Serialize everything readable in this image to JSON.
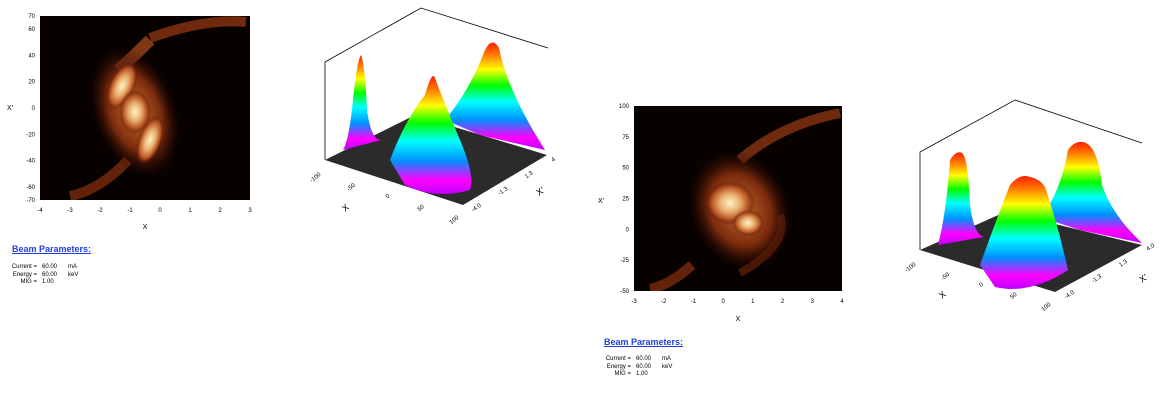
{
  "figures": [
    {
      "heatmap": {
        "xlabel": "X",
        "ylabel": "X'",
        "x_ticks": [
          "-4",
          "-3",
          "-2",
          "-1",
          "0",
          "1",
          "2",
          "3"
        ],
        "y_ticks": [
          "70",
          "60",
          "40",
          "20",
          "0",
          "-20",
          "-40",
          "-60",
          "-70"
        ]
      },
      "surface": {
        "axis_labels": [
          "X",
          "X'"
        ],
        "left_ticks": [
          "-100",
          "-50",
          "0",
          "50",
          "100"
        ],
        "right_ticks": [
          "-4.0",
          "-1.3",
          "1.3",
          "4.0"
        ]
      },
      "params": {
        "title": "Beam Parameters:",
        "rows": [
          {
            "label": "Current =",
            "value": "60.00",
            "unit": "mA"
          },
          {
            "label": "Energy =",
            "value": "60.00",
            "unit": "keV"
          },
          {
            "label": "MIG =",
            "value": "1.00",
            "unit": ""
          }
        ]
      }
    },
    {
      "heatmap": {
        "xlabel": "X",
        "ylabel": "X'",
        "x_ticks": [
          "-3",
          "-2",
          "-1",
          "0",
          "1",
          "2",
          "3",
          "4"
        ],
        "y_ticks": [
          "100",
          "75",
          "50",
          "25",
          "0",
          "-25",
          "-50"
        ]
      },
      "surface": {
        "axis_labels": [
          "X",
          "X'"
        ],
        "left_ticks": [
          "-100",
          "-50",
          "0",
          "50",
          "100"
        ],
        "right_ticks": [
          "-4.0",
          "-1.3",
          "1.3",
          "4.0"
        ]
      },
      "params": {
        "title": "Beam Parameters:",
        "rows": [
          {
            "label": "Current =",
            "value": "60.00",
            "unit": "mA"
          },
          {
            "label": "Energy =",
            "value": "60.00",
            "unit": "keV"
          },
          {
            "label": "MIG =",
            "value": "1.00",
            "unit": ""
          }
        ]
      }
    }
  ],
  "chart_data": [
    {
      "type": "heatmap",
      "xlabel": "X",
      "ylabel": "X'",
      "xlim": [
        -4,
        3
      ],
      "ylim": [
        -70,
        70
      ],
      "x_ticks": [
        -4,
        -3,
        -2,
        -1,
        0,
        1,
        2,
        3
      ],
      "y_ticks": [
        70,
        60,
        40,
        20,
        0,
        -20,
        -40,
        -60,
        -70
      ],
      "colormap": [
        "#000000",
        "#5a1505",
        "#b2501e",
        "#e7a469",
        "#fff2c6"
      ]
    },
    {
      "type": "surface",
      "axis_labels": [
        "X",
        "X'"
      ],
      "axis_ticks_xp": [
        -100,
        -50,
        0,
        50,
        100
      ],
      "axis_ticks_x": [
        -4.0,
        -1.3,
        1.3,
        4.0
      ],
      "colormap": [
        "#c000ff",
        "#ff00ff",
        "#0090ff",
        "#00ffff",
        "#00ff00",
        "#ffff00",
        "#ff8000",
        "#ff0000"
      ]
    },
    {
      "type": "heatmap",
      "xlabel": "X",
      "ylabel": "X'",
      "xlim": [
        -3,
        4
      ],
      "ylim": [
        -50,
        100
      ],
      "x_ticks": [
        -3,
        -2,
        -1,
        0,
        1,
        2,
        3,
        4
      ],
      "y_ticks": [
        100,
        75,
        50,
        25,
        0,
        -25,
        -50
      ],
      "colormap": [
        "#000000",
        "#5a1505",
        "#b2501e",
        "#e7a469",
        "#fff2c6"
      ]
    },
    {
      "type": "surface",
      "axis_labels": [
        "X",
        "X'"
      ],
      "axis_ticks_xp": [
        -100,
        -50,
        0,
        50,
        100
      ],
      "axis_ticks_x": [
        -4.0,
        -1.3,
        1.3,
        4.0
      ],
      "colormap": [
        "#c000ff",
        "#ff00ff",
        "#0090ff",
        "#00ffff",
        "#00ff00",
        "#ffff00",
        "#ff8000",
        "#ff0000"
      ]
    }
  ]
}
